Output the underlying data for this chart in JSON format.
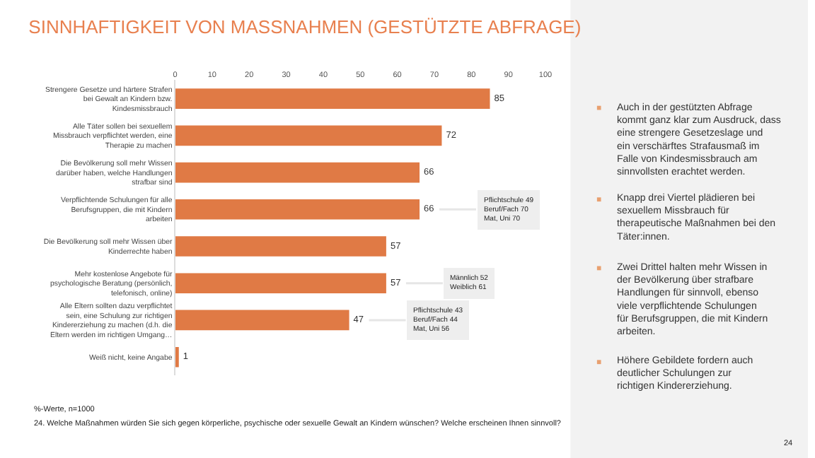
{
  "chart_data": {
    "type": "bar",
    "orientation": "horizontal",
    "title": "SINNHAFTIGKEIT VON MASSNAHMEN (GESTÜTZTE ABFRAGE)",
    "categories": [
      "Strengere Gesetze und härtere Strafen bei Gewalt an Kindern bzw. Kindesmissbrauch",
      "Alle Täter sollen bei sexuellem Missbrauch verpflichtet werden, eine Therapie zu machen",
      "Die Bevölkerung soll mehr Wissen darüber haben, welche Handlungen strafbar sind",
      "Verpflichtende Schulungen für alle Berufsgruppen, die mit Kindern arbeiten",
      "Die Bevölkerung soll mehr Wissen über Kinderrechte haben",
      "Mehr kostenlose Angebote für psychologische Beratung (persönlich, telefonisch, online)",
      "Alle Eltern sollten dazu verpflichtet sein, eine Schulung zur richtigen Kindererziehung zu machen (d.h. die Eltern werden im richtigen Umgang…",
      "Weiß nicht, keine Angabe"
    ],
    "values": [
      85,
      72,
      66,
      66,
      57,
      57,
      47,
      1
    ],
    "color": "#e07a45",
    "data_labels": true,
    "xlim": [
      0,
      100
    ],
    "xticks": [
      0,
      10,
      20,
      30,
      40,
      50,
      60,
      70,
      80,
      90,
      100
    ],
    "legend": false,
    "annotations": [
      {
        "text": "Pflichtschule 49\nBeruf/Fach 70\nMat, Uni 70",
        "x": 66,
        "y": "Verpflichtende Schulungen für alle Berufsgruppen, die mit Kindern arbeiten"
      },
      {
        "text": "Männlich 52\nWeiblich 61",
        "x": 57,
        "y": "Mehr kostenlose Angebote für psychologische Beratung (persönlich, telefonisch, online)"
      },
      {
        "text": "Pflichtschule 43\nBeruf/Fach 44\nMat, Uni 56",
        "x": 47,
        "y": "Alle Eltern sollten dazu verpflichtet sein, eine Schulung zur richtigen Kindererziehung zu machen (d.h. die Eltern werden im richtigen Umgang…"
      },
      "%-Werte, n=1000",
      "24. Welche Maßnahmen würden Sie sich gegen körperliche, psychische oder sexuelle Gewalt an Kindern wünschen? Welche erscheinen Ihnen sinnvoll?",
      "Auch in der gestützten Abfrage kommt ganz klar zum Ausdruck, dass eine strengere Gesetzeslage und ein verschärftes Strafausmaß im Falle von Kindesmissbrauch am sinnvollsten erachtet werden.",
      "Knapp drei Viertel plädieren bei sexuellem Missbrauch für therapeutische Maßnahmen bei den Täter:innen.",
      "Zwei Drittel halten mehr Wissen in der Bevölkerung über strafbare Handlungen für sinnvoll, ebenso viele verpflichtende Schulungen für Berufsgruppen, die mit Kindern arbeiten.",
      "Höhere Gebildete fordern auch deutlicher Schulungen zur richtigen Kindererziehung.",
      "24"
    ]
  }
}
